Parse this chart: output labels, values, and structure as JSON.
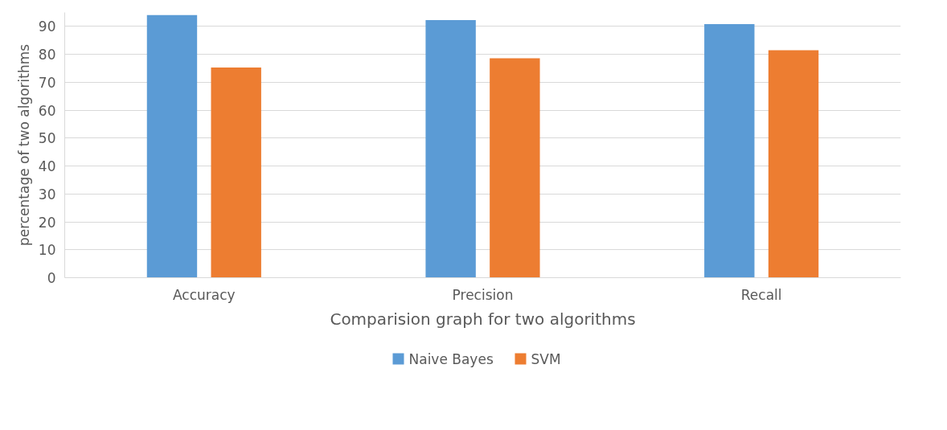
{
  "chart_data": {
    "type": "bar",
    "xlabel": "Comparision graph for two algorithms",
    "ylabel": "percentage of two algorithms",
    "categories": [
      "Accuracy",
      "Precision",
      "Recall"
    ],
    "series": [
      {
        "name": "Naive Bayes",
        "color": "#5b9bd5",
        "values": [
          94.1,
          92.3,
          90.8
        ]
      },
      {
        "name": "SVM",
        "color": "#ed7d31",
        "values": [
          75.3,
          78.6,
          81.5
        ]
      }
    ],
    "ylim": [
      0,
      95
    ],
    "yticks": [
      0,
      10,
      20,
      30,
      40,
      50,
      60,
      70,
      80,
      90
    ],
    "grid": "y",
    "legend": "bottom"
  }
}
